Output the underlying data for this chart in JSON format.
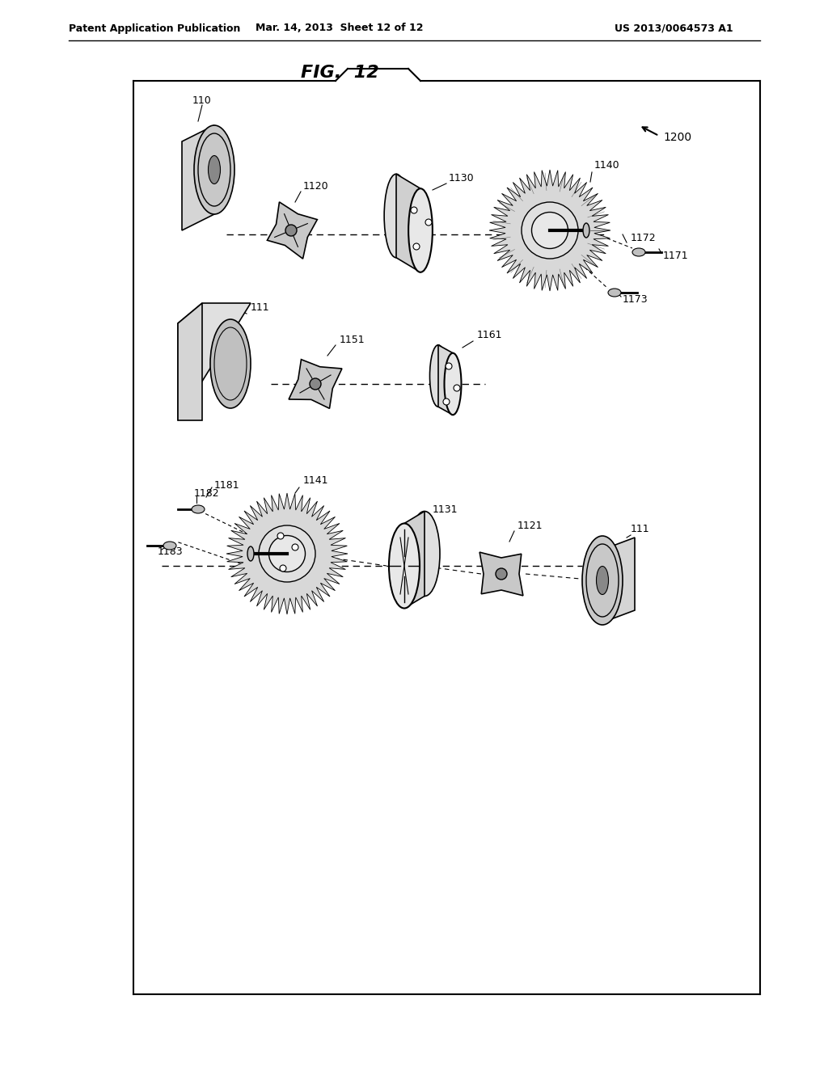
{
  "background_color": "#ffffff",
  "border_color": "#000000",
  "text_color": "#000000",
  "header_left": "Patent Application Publication",
  "header_center": "Mar. 14, 2013  Sheet 12 of 12",
  "header_right": "US 2013/0064573 A1",
  "figure_title": "FIG.  12",
  "label_1200": "1200",
  "label_110_top": "110",
  "label_1120": "1120",
  "label_1130": "1130",
  "label_1140": "1140",
  "label_1172": "1172",
  "label_1171": "1171",
  "label_1173": "1173",
  "label_111_mid": "111",
  "label_1151": "1151",
  "label_1161": "1161",
  "label_1182": "1182",
  "label_1181": "1181",
  "label_1141": "1141",
  "label_1183": "1183",
  "label_1131": "1131",
  "label_1121": "1121",
  "label_111_bot": "111"
}
